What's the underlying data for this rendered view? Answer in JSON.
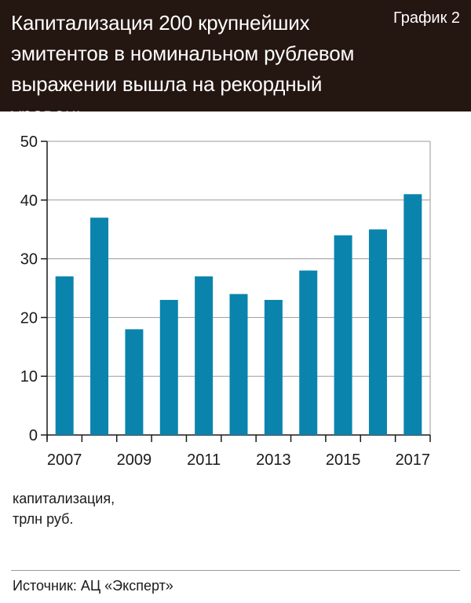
{
  "header": {
    "title": "Капитализация 200 крупнейших эмитентов в номинальном рублевом выражении вышла на рекордный уровень",
    "badge": "График 2"
  },
  "unit_label": "капитализация,\nтрлн руб.",
  "source": "Источник: АЦ «Эксперт»",
  "colors": {
    "bar": "#0a84ad",
    "header_bg": "#241611",
    "grid": "#9a9a9a"
  },
  "chart_data": {
    "type": "bar",
    "categories": [
      "2007",
      "2008",
      "2009",
      "2010",
      "2011",
      "2012",
      "2013",
      "2014",
      "2015",
      "2016",
      "2017"
    ],
    "values": [
      27,
      37,
      18,
      23,
      27,
      24,
      23,
      28,
      34,
      35,
      41
    ],
    "xticks": [
      "2007",
      "2009",
      "2011",
      "2013",
      "2015",
      "2017"
    ],
    "yticks": [
      0,
      10,
      20,
      30,
      40,
      50
    ],
    "ylim": [
      0,
      50
    ],
    "grid": true,
    "ylabel": "капитализация, трлн руб."
  }
}
